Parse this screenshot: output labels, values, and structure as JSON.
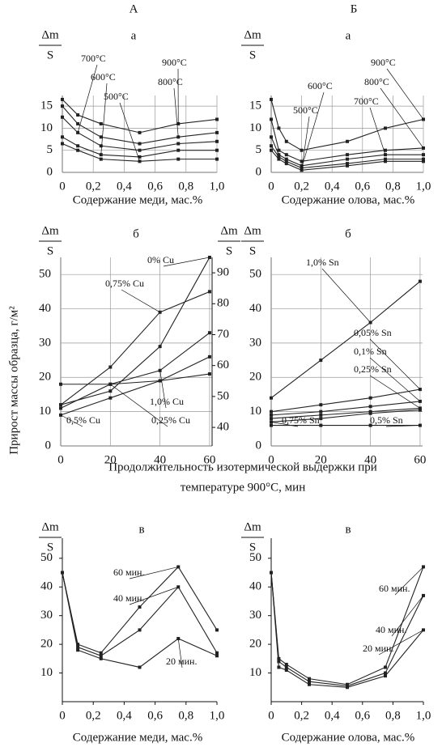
{
  "y_axis_label": "Прирост массы образца, г/м²",
  "middle_x_label": [
    "Продолжительность изотермической выдержки при",
    "температуре 900°C, мин"
  ],
  "chart_data": [
    {
      "type": "line",
      "column_label": "А",
      "title": "а",
      "y_label": [
        "Δm",
        "S"
      ],
      "x_label": "Содержание меди, мас.%",
      "grid": true,
      "x": [
        0,
        0.1,
        0.25,
        0.5,
        0.75,
        1.0
      ],
      "xlim": [
        0,
        1.0
      ],
      "xticks": [
        0,
        {
          "value": 0.2,
          "label": "0,2"
        },
        {
          "value": 0.4,
          "label": "0,4"
        },
        {
          "value": 0.6,
          "label": "0,6"
        },
        {
          "value": 0.8,
          "label": "0,8"
        },
        {
          "value": 1.0,
          "label": "1,0"
        }
      ],
      "ylim": [
        0,
        17.4
      ],
      "yticks": [
        0,
        5,
        10,
        15
      ],
      "series": [
        {
          "name": "900°C",
          "color": "#222",
          "values": [
            16.5,
            13,
            11,
            9,
            11,
            12
          ]
        },
        {
          "name": "800°C",
          "color": "#222",
          "values": [
            15,
            11,
            8,
            6.5,
            8,
            9
          ]
        },
        {
          "name": "700°C",
          "color": "#222",
          "values": [
            12.5,
            9,
            6,
            5,
            6.5,
            7
          ]
        },
        {
          "name": "600°C",
          "color": "#222",
          "values": [
            8,
            6,
            4,
            3.5,
            5,
            5
          ]
        },
        {
          "name": "500°C",
          "color": "#222",
          "values": [
            6.5,
            5,
            3,
            2.5,
            3,
            3
          ]
        }
      ]
    },
    {
      "type": "line",
      "column_label": "Б",
      "title": "а",
      "y_label": [
        "Δm",
        "S"
      ],
      "x_label": "Содержание олова, мас.%",
      "grid": true,
      "x": [
        0,
        0.05,
        0.1,
        0.2,
        0.5,
        0.75,
        1.0
      ],
      "xlim": [
        0,
        1.0
      ],
      "xticks": [
        0,
        {
          "value": 0.2,
          "label": "0,2"
        },
        {
          "value": 0.4,
          "label": "0,4"
        },
        {
          "value": 0.6,
          "label": "0,6"
        },
        {
          "value": 0.8,
          "label": "0,8"
        },
        {
          "value": 1.0,
          "label": "1,0"
        }
      ],
      "ylim": [
        0,
        17.4
      ],
      "yticks": [
        0,
        5,
        10,
        15
      ],
      "series": [
        {
          "name": "900°C",
          "color": "#222",
          "values": [
            16.5,
            10,
            7,
            5,
            7,
            10,
            12
          ]
        },
        {
          "name": "800°C",
          "color": "#222",
          "values": [
            12,
            5,
            4,
            2.5,
            4,
            5,
            5.5
          ]
        },
        {
          "name": "700°C",
          "color": "#222",
          "values": [
            8,
            4,
            3,
            1.5,
            3,
            4,
            4
          ]
        },
        {
          "name": "600°C",
          "color": "#222",
          "values": [
            6,
            3.5,
            2.5,
            1,
            2,
            3,
            3
          ]
        },
        {
          "name": "500°C",
          "color": "#222",
          "values": [
            5,
            3,
            2,
            0.5,
            1.5,
            2.5,
            2.5
          ]
        }
      ]
    },
    {
      "type": "line",
      "title": "б",
      "y_label": [
        "Δm",
        "S"
      ],
      "y2_label": [
        "Δm",
        "S"
      ],
      "grid": true,
      "x": [
        0,
        20,
        40,
        60
      ],
      "xlim": [
        0,
        61
      ],
      "xticks": [
        0,
        20,
        40,
        60
      ],
      "ylim": [
        0,
        55
      ],
      "yticks": [
        0,
        10,
        20,
        30,
        40,
        50
      ],
      "y2lim": [
        34,
        95
      ],
      "y2ticks": [
        40,
        50,
        60,
        70,
        80,
        90
      ],
      "series": [
        {
          "name": "0% Cu",
          "color": "#222",
          "values": [
            12,
            16,
            29,
            55
          ]
        },
        {
          "name": "0,75% Cu",
          "color": "#222",
          "values": [
            12,
            23,
            39,
            45
          ]
        },
        {
          "name": "1,0% Cu",
          "color": "#222",
          "values": [
            11,
            18,
            22,
            33
          ]
        },
        {
          "name": "0,5% Cu",
          "color": "#222",
          "values": [
            9,
            14,
            19,
            26
          ]
        },
        {
          "name": "0,25% Cu",
          "color": "#222",
          "values": [
            18,
            18,
            19,
            21
          ]
        }
      ]
    },
    {
      "type": "line",
      "title": "б",
      "y_label": [
        "Δm",
        "S"
      ],
      "grid": true,
      "x": [
        0,
        20,
        40,
        60
      ],
      "xlim": [
        0,
        61
      ],
      "xticks": [
        0,
        20,
        40,
        60
      ],
      "ylim": [
        0,
        55
      ],
      "yticks": [
        0,
        10,
        20,
        30,
        40,
        50
      ],
      "series": [
        {
          "name": "1,0% Sn",
          "color": "#222",
          "values": [
            14,
            25,
            36,
            48
          ]
        },
        {
          "name": "0,05% Sn",
          "color": "#222",
          "values": [
            10,
            12,
            14,
            16.5
          ]
        },
        {
          "name": "0,1% Sn",
          "color": "#222",
          "values": [
            9,
            10,
            11.5,
            13
          ]
        },
        {
          "name": "0,25% Sn",
          "color": "#222",
          "values": [
            8,
            9,
            10,
            11
          ]
        },
        {
          "name": "0,75% Sn",
          "color": "#222",
          "values": [
            7,
            8,
            9.5,
            10.5
          ]
        },
        {
          "name": "0,5% Sn",
          "color": "#222",
          "values": [
            6,
            6,
            6,
            6
          ]
        }
      ]
    },
    {
      "type": "line",
      "title": "в",
      "y_label": [
        "Δm",
        "S"
      ],
      "x_label": "Содержание меди, мас.%",
      "grid": false,
      "x": [
        0,
        0.1,
        0.25,
        0.5,
        0.75,
        1.0
      ],
      "xlim": [
        0,
        1.0
      ],
      "xticks": [
        0,
        {
          "value": 0.2,
          "label": "0,2"
        },
        {
          "value": 0.4,
          "label": "0,4"
        },
        {
          "value": 0.6,
          "label": "0,6"
        },
        {
          "value": 0.8,
          "label": "0,8"
        },
        {
          "value": 1.0,
          "label": "1,0"
        }
      ],
      "ylim": [
        0,
        57
      ],
      "yticks": [
        10,
        20,
        30,
        40,
        50
      ],
      "series": [
        {
          "name": "60 мин.",
          "color": "#222",
          "values": [
            45,
            20,
            17,
            33,
            47,
            25
          ]
        },
        {
          "name": "40 мин.",
          "color": "#222",
          "values": [
            45,
            19,
            16,
            25,
            40,
            17
          ]
        },
        {
          "name": "20 мин.",
          "color": "#222",
          "values": [
            45,
            18,
            15,
            12,
            22,
            16
          ]
        }
      ]
    },
    {
      "type": "line",
      "title": "в",
      "y_label": [
        "Δm",
        "S"
      ],
      "x_label": "Содержание олова, мас.%",
      "grid": false,
      "x": [
        0,
        0.05,
        0.1,
        0.25,
        0.5,
        0.75,
        1.0
      ],
      "xlim": [
        0,
        1.0
      ],
      "xticks": [
        0,
        {
          "value": 0.2,
          "label": "0,2"
        },
        {
          "value": 0.4,
          "label": "0,4"
        },
        {
          "value": 0.6,
          "label": "0,6"
        },
        {
          "value": 0.8,
          "label": "0,8"
        },
        {
          "value": 1.0,
          "label": "1,0"
        }
      ],
      "ylim": [
        0,
        57
      ],
      "yticks": [
        10,
        20,
        30,
        40,
        50
      ],
      "series": [
        {
          "name": "60 мин.",
          "color": "#222",
          "values": [
            45,
            15,
            13,
            8,
            6,
            12,
            47
          ]
        },
        {
          "name": "40 мин.",
          "color": "#222",
          "values": [
            45,
            14,
            12,
            7,
            5.5,
            10,
            37
          ]
        },
        {
          "name": "20 мин.",
          "color": "#222",
          "values": [
            45,
            12,
            11,
            6,
            5,
            9,
            25
          ]
        }
      ]
    }
  ]
}
